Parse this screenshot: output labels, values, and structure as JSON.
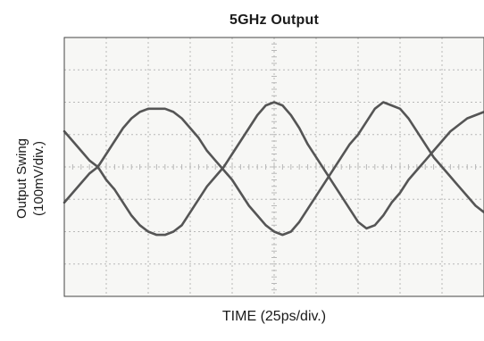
{
  "chart_data": {
    "type": "line",
    "title": "5GHz Output",
    "xlabel": "TIME (25ps/div.)",
    "ylabel_line1": "Output Swing",
    "ylabel_line2": "(100mV/div.)",
    "xlim": [
      0,
      10
    ],
    "ylim": [
      -4,
      4
    ],
    "x_divisions": 10,
    "y_divisions": 8,
    "grid": true,
    "x_unit": "div",
    "y_unit": "div",
    "series": [
      {
        "x": [
          0,
          0.2,
          0.4,
          0.6,
          0.8,
          1.0,
          1.2,
          1.4,
          1.6,
          1.8,
          2.0,
          2.2,
          2.4,
          2.6,
          2.8,
          3.0,
          3.2,
          3.4,
          3.6,
          3.8,
          4.0,
          4.2,
          4.4,
          4.6,
          4.8,
          5.0,
          5.2,
          5.4,
          5.6,
          5.8,
          6.0,
          6.2,
          6.4,
          6.6,
          6.8,
          7.0,
          7.2,
          7.4,
          7.6,
          7.8,
          8.0,
          8.2,
          8.4,
          8.6,
          8.8,
          9.0,
          9.2,
          9.4,
          9.6,
          9.8,
          10.0
        ],
        "values": [
          1.1,
          0.8,
          0.5,
          0.2,
          -0.0,
          -0.4,
          -0.7,
          -1.1,
          -1.5,
          -1.8,
          -2.0,
          -2.1,
          -2.1,
          -2.0,
          -1.8,
          -1.4,
          -1.0,
          -0.6,
          -0.3,
          0.0,
          0.4,
          0.8,
          1.2,
          1.6,
          1.9,
          2.0,
          1.9,
          1.6,
          1.2,
          0.7,
          0.3,
          -0.1,
          -0.5,
          -0.9,
          -1.3,
          -1.7,
          -1.9,
          -1.8,
          -1.5,
          -1.1,
          -0.8,
          -0.4,
          -0.1,
          0.2,
          0.5,
          0.8,
          1.1,
          1.3,
          1.5,
          1.6,
          1.7
        ]
      },
      {
        "x": [
          0,
          0.2,
          0.4,
          0.6,
          0.8,
          1.0,
          1.2,
          1.4,
          1.6,
          1.8,
          2.0,
          2.2,
          2.4,
          2.6,
          2.8,
          3.0,
          3.2,
          3.4,
          3.6,
          3.8,
          4.0,
          4.2,
          4.4,
          4.6,
          4.8,
          5.0,
          5.2,
          5.4,
          5.6,
          5.8,
          6.0,
          6.2,
          6.4,
          6.6,
          6.8,
          7.0,
          7.2,
          7.4,
          7.6,
          7.8,
          8.0,
          8.2,
          8.4,
          8.6,
          8.8,
          9.0,
          9.2,
          9.4,
          9.6,
          9.8,
          10.0
        ],
        "values": [
          -1.1,
          -0.8,
          -0.5,
          -0.2,
          0.0,
          0.4,
          0.8,
          1.2,
          1.5,
          1.7,
          1.8,
          1.8,
          1.8,
          1.7,
          1.5,
          1.2,
          0.9,
          0.5,
          0.2,
          -0.1,
          -0.4,
          -0.8,
          -1.2,
          -1.5,
          -1.8,
          -2.0,
          -2.1,
          -2.0,
          -1.7,
          -1.3,
          -0.9,
          -0.5,
          -0.1,
          0.3,
          0.7,
          1.0,
          1.4,
          1.8,
          2.0,
          1.9,
          1.8,
          1.5,
          1.1,
          0.7,
          0.3,
          0.0,
          -0.3,
          -0.6,
          -0.9,
          -1.2,
          -1.4
        ]
      }
    ]
  },
  "colors": {
    "trace": "#555555",
    "grid": "#b8b8b8",
    "frame": "#444444"
  }
}
